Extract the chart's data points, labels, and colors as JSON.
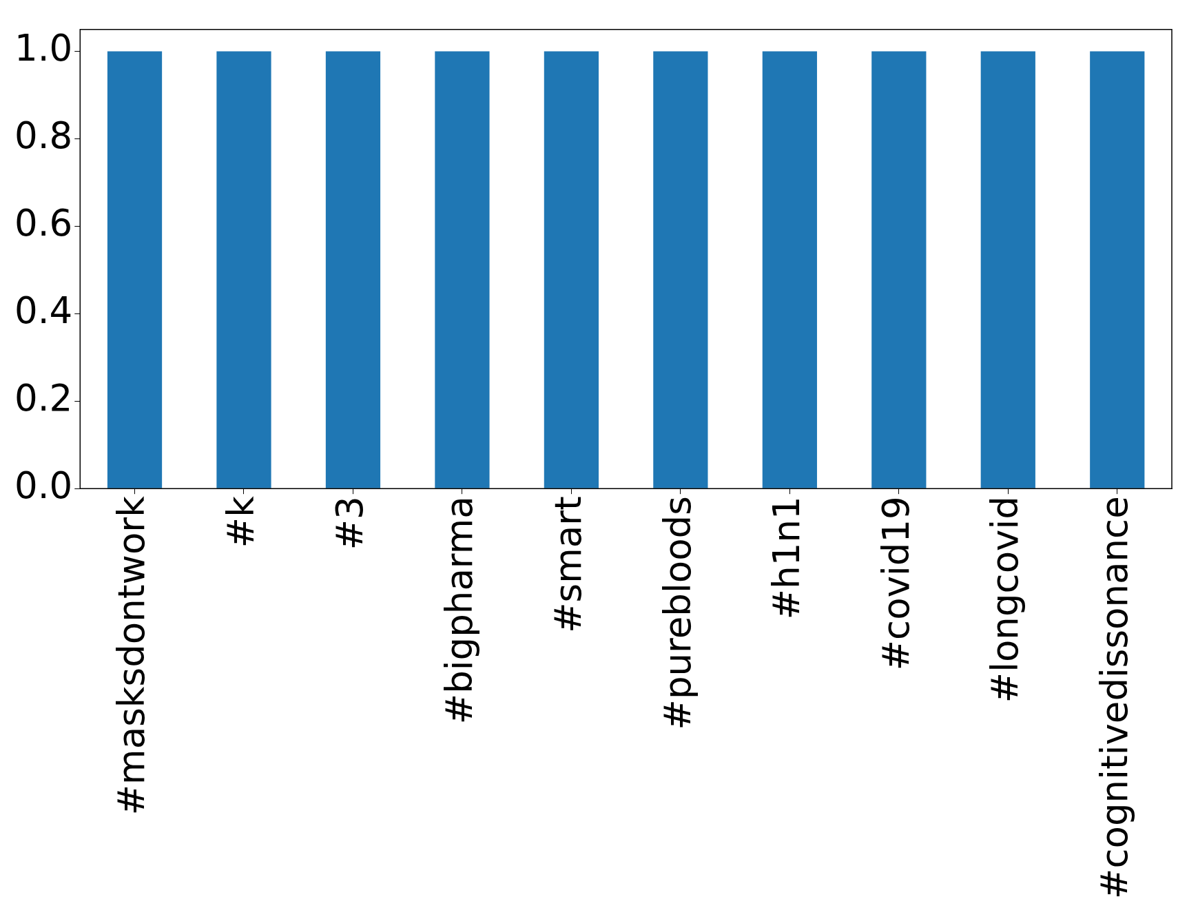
{
  "chart_data": {
    "type": "bar",
    "categories": [
      "#masksdontwork",
      "#k",
      "#3",
      "#bigpharma",
      "#smart",
      "#purebloods",
      "#h1n1",
      "#covid19",
      "#longcovid",
      "#cognitivedissonance"
    ],
    "values": [
      1,
      1,
      1,
      1,
      1,
      1,
      1,
      1,
      1,
      1
    ],
    "color": "#1f77b4",
    "ylim": [
      0,
      1.05
    ],
    "yticks": [
      {
        "value": 0,
        "label": "0.0"
      },
      {
        "value": 0.2,
        "label": "0.2"
      },
      {
        "value": 0.4,
        "label": "0.4"
      },
      {
        "value": 0.6,
        "label": "0.6"
      },
      {
        "value": 0.8,
        "label": "0.8"
      },
      {
        "value": 1,
        "label": "1.0"
      }
    ],
    "grid": false,
    "legend": false
  }
}
